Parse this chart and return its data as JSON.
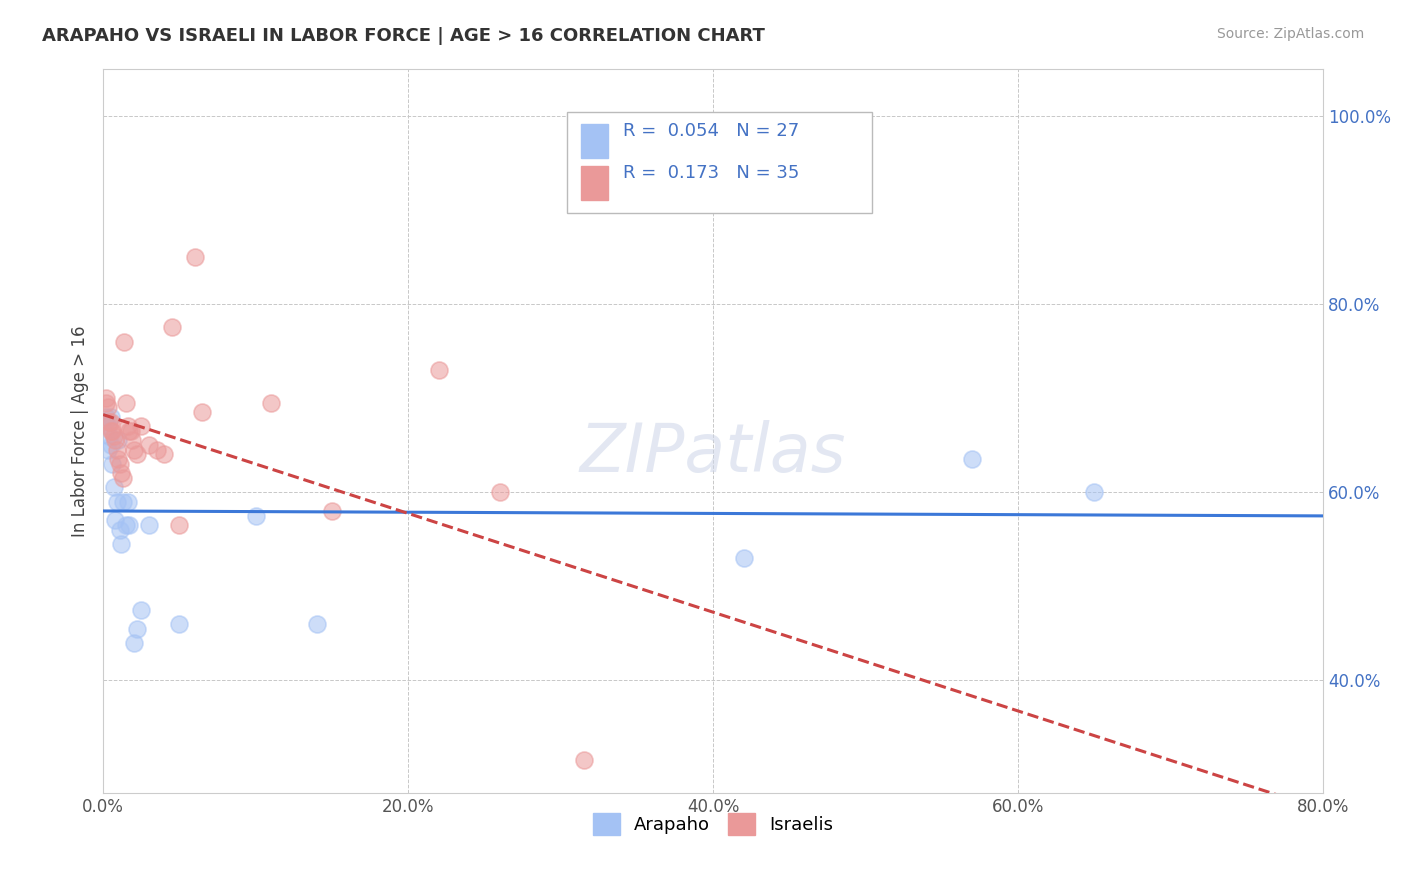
{
  "title": "ARAPAHO VS ISRAELI IN LABOR FORCE | AGE > 16 CORRELATION CHART",
  "source": "Source: ZipAtlas.com",
  "ylabel": "In Labor Force | Age > 16",
  "xlim": [
    0.0,
    0.8
  ],
  "ylim": [
    0.28,
    1.05
  ],
  "yticks": [
    0.4,
    0.6,
    0.8,
    1.0
  ],
  "ytick_labels": [
    "40.0%",
    "60.0%",
    "80.0%",
    "100.0%"
  ],
  "xticks": [
    0.0,
    0.2,
    0.4,
    0.6,
    0.8
  ],
  "xtick_labels": [
    "0.0%",
    "20.0%",
    "40.0%",
    "60.0%",
    "80.0%"
  ],
  "arapaho_x": [
    0.002,
    0.003,
    0.003,
    0.004,
    0.005,
    0.005,
    0.006,
    0.007,
    0.008,
    0.009,
    0.01,
    0.011,
    0.012,
    0.013,
    0.015,
    0.016,
    0.017,
    0.02,
    0.022,
    0.025,
    0.03,
    0.05,
    0.1,
    0.14,
    0.42,
    0.57,
    0.65
  ],
  "arapaho_y": [
    0.68,
    0.67,
    0.645,
    0.66,
    0.65,
    0.68,
    0.63,
    0.605,
    0.57,
    0.59,
    0.655,
    0.56,
    0.545,
    0.59,
    0.565,
    0.59,
    0.565,
    0.44,
    0.455,
    0.475,
    0.565,
    0.46,
    0.575,
    0.46,
    0.53,
    0.635,
    0.6
  ],
  "israeli_x": [
    0.002,
    0.002,
    0.003,
    0.004,
    0.005,
    0.005,
    0.006,
    0.007,
    0.008,
    0.009,
    0.01,
    0.011,
    0.012,
    0.013,
    0.014,
    0.015,
    0.016,
    0.017,
    0.018,
    0.019,
    0.02,
    0.022,
    0.025,
    0.03,
    0.035,
    0.04,
    0.045,
    0.05,
    0.06,
    0.065,
    0.11,
    0.15,
    0.22,
    0.26,
    0.315
  ],
  "israeli_y": [
    0.7,
    0.695,
    0.69,
    0.675,
    0.675,
    0.665,
    0.665,
    0.66,
    0.655,
    0.645,
    0.635,
    0.63,
    0.62,
    0.615,
    0.76,
    0.695,
    0.67,
    0.665,
    0.665,
    0.655,
    0.645,
    0.64,
    0.67,
    0.65,
    0.645,
    0.64,
    0.775,
    0.565,
    0.85,
    0.685,
    0.695,
    0.58,
    0.73,
    0.6,
    0.315
  ],
  "arapaho_color": "#a4c2f4",
  "israeli_color": "#ea9999",
  "arapaho_R": "0.054",
  "arapaho_N": "27",
  "israeli_R": "0.173",
  "israeli_N": "35",
  "trend_color_arapaho": "#3c78d8",
  "trend_color_israeli": "#cc4444",
  "watermark": "ZIPatlas",
  "background_color": "#ffffff",
  "grid_color": "#c8c8c8"
}
